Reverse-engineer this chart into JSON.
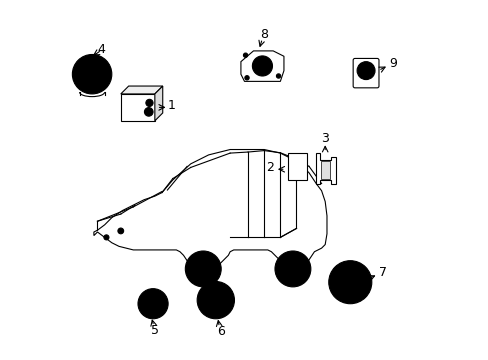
{
  "background_color": "#ffffff",
  "figsize": [
    4.89,
    3.6
  ],
  "dpi": 100,
  "line_color": "#000000",
  "line_width": 0.8,
  "label_fontsize": 9
}
